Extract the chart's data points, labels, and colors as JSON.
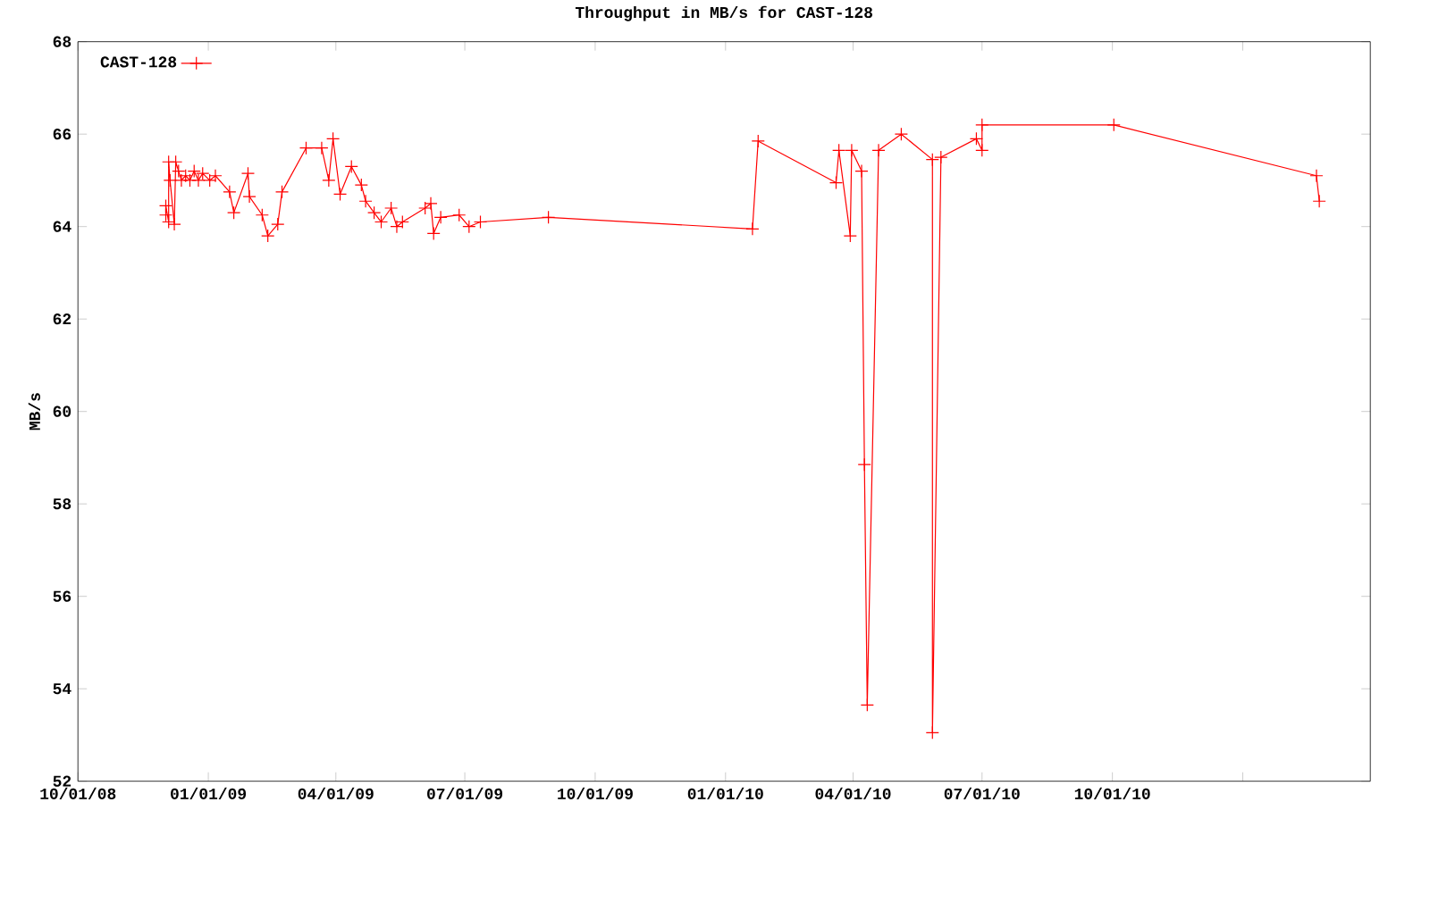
{
  "chart_data": {
    "type": "line",
    "title": "Throughput in MB/s for CAST-128",
    "ylabel": "MB/s",
    "x": [
      "2008-12-02",
      "2008-12-02",
      "2008-12-04",
      "2008-12-04",
      "2008-12-05",
      "2008-12-08",
      "2008-12-09",
      "2008-12-11",
      "2008-12-13",
      "2008-12-16",
      "2008-12-19",
      "2008-12-22",
      "2008-12-25",
      "2008-12-28",
      "2009-01-02",
      "2009-01-06",
      "2009-01-16",
      "2009-01-19",
      "2009-01-29",
      "2009-01-30",
      "2009-02-08",
      "2009-02-12",
      "2009-02-19",
      "2009-02-22",
      "2009-03-11",
      "2009-03-22",
      "2009-03-27",
      "2009-03-30",
      "2009-04-04",
      "2009-04-12",
      "2009-04-19",
      "2009-04-22",
      "2009-04-28",
      "2009-05-03",
      "2009-05-10",
      "2009-05-14",
      "2009-05-18",
      "2009-06-03",
      "2009-06-07",
      "2009-06-09",
      "2009-06-14",
      "2009-06-27",
      "2009-07-04",
      "2009-07-12",
      "2009-08-29",
      "2010-01-20",
      "2010-01-24",
      "2010-03-20",
      "2010-03-22",
      "2010-03-30",
      "2010-03-31",
      "2010-04-07",
      "2010-04-09",
      "2010-04-11",
      "2010-04-19",
      "2010-05-05",
      "2010-05-27",
      "2010-05-27",
      "2010-06-02",
      "2010-06-27",
      "2010-07-01",
      "2010-07-01",
      "2010-10-02",
      "2011-02-22",
      "2011-02-24"
    ],
    "series": [
      {
        "name": "CAST-128",
        "color": "#ff0000",
        "values": [
          64.25,
          64.45,
          64.1,
          65.4,
          65.0,
          64.05,
          65.4,
          65.2,
          65.0,
          65.1,
          65.0,
          65.2,
          65.0,
          65.15,
          65.0,
          65.1,
          64.75,
          64.3,
          65.15,
          64.65,
          64.25,
          63.8,
          64.05,
          64.75,
          65.7,
          65.7,
          65.0,
          65.9,
          64.7,
          65.3,
          64.9,
          64.55,
          64.3,
          64.1,
          64.4,
          64.0,
          64.1,
          64.4,
          64.5,
          63.85,
          64.2,
          64.25,
          64.0,
          64.1,
          64.2,
          63.95,
          65.85,
          64.95,
          65.65,
          63.8,
          65.65,
          65.2,
          58.85,
          53.65,
          65.65,
          66.0,
          65.45,
          53.05,
          65.5,
          65.9,
          65.65,
          66.2,
          66.2,
          65.1,
          64.55
        ]
      }
    ],
    "xlim": [
      "2008-10-01",
      "2011-04-01"
    ],
    "xticks": [
      {
        "value": "2008-10-01",
        "label": "10/01/08"
      },
      {
        "value": "2009-01-01",
        "label": "01/01/09"
      },
      {
        "value": "2009-04-01",
        "label": "04/01/09"
      },
      {
        "value": "2009-07-01",
        "label": "07/01/09"
      },
      {
        "value": "2009-10-01",
        "label": "10/01/09"
      },
      {
        "value": "2010-01-01",
        "label": "01/01/10"
      },
      {
        "value": "2010-04-01",
        "label": "04/01/10"
      },
      {
        "value": "2010-07-01",
        "label": "07/01/10"
      },
      {
        "value": "2010-10-01",
        "label": "10/01/10"
      },
      {
        "value": "2011-01-01",
        "label": null
      }
    ],
    "ylim": [
      52,
      68
    ],
    "yticks": [
      52,
      54,
      56,
      58,
      60,
      62,
      64,
      66,
      68
    ],
    "grid": false,
    "legend": "top left",
    "marker": "cross",
    "line_style": "solid"
  }
}
